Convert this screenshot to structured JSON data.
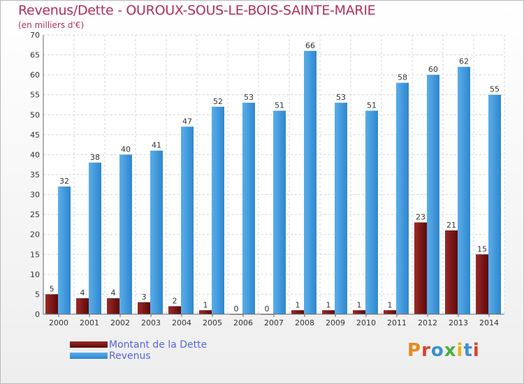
{
  "title": "Revenus/Dette - OUROUX-SOUS-LE-BOIS-SAINTE-MARIE",
  "subtitle": "(en milliers d'€)",
  "logo_text": "Proxiti",
  "colors": {
    "dette": "#7a1010",
    "revenus": "#3d95d8",
    "title": "#b0305a",
    "legend_text": "#5566dd"
  },
  "chart_data": {
    "type": "bar",
    "categories": [
      "2000",
      "2001",
      "2002",
      "2003",
      "2004",
      "2005",
      "2006",
      "2007",
      "2008",
      "2009",
      "2010",
      "2011",
      "2012",
      "2013",
      "2014"
    ],
    "series": [
      {
        "name": "Montant de la Dette",
        "values": [
          5,
          4,
          4,
          3,
          2,
          1,
          0,
          0,
          1,
          1,
          1,
          1,
          23,
          21,
          15
        ]
      },
      {
        "name": "Revenus",
        "values": [
          32,
          38,
          40,
          41,
          47,
          52,
          53,
          51,
          66,
          53,
          51,
          58,
          60,
          62,
          55
        ]
      }
    ],
    "yticks": [
      0,
      5,
      10,
      15,
      20,
      25,
      30,
      35,
      40,
      45,
      50,
      55,
      60,
      65,
      70
    ],
    "ylim": [
      0,
      70
    ],
    "grid": true,
    "legend_position": "bottom-left"
  }
}
